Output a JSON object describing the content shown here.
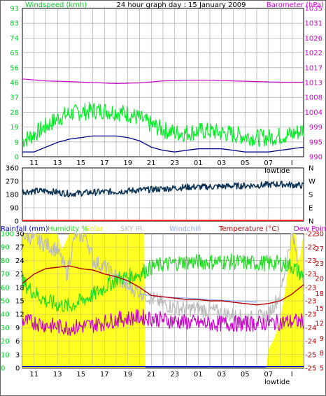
{
  "header": {
    "left_title": "Windspeed (kmh)",
    "center_title": "24 hour graph day : 15 January 2009",
    "right_title": "Barometer (hPa)"
  },
  "colors": {
    "wind_speed": "#00ee22",
    "wind_avg": "#00008b",
    "barometer": "#cc00cc",
    "wind_dir": "#0b3355",
    "temperature": "#b40000",
    "dew_point": "#cc00cc",
    "humidity": "#22dd22",
    "solar": "#ffff22",
    "sky_ir": "#bbbbbb",
    "windchill": "#88aaff",
    "rain": "#0000cc",
    "axis_left_text": "#00cc22",
    "axis_right_text": "#cc00cc",
    "grid": "#9a9a9a"
  },
  "x_axis": {
    "ticks": [
      "11",
      "13",
      "15",
      "17",
      "19",
      "21",
      "23",
      "01",
      "03",
      "05",
      "07",
      "I"
    ],
    "extra_label": "lowtide"
  },
  "chart_data": [
    {
      "type": "line",
      "name": "wind-barometer",
      "x": {
        "start_hour": 10,
        "end_hour": 34
      },
      "left_axis": {
        "label": "Windspeed (kmh)",
        "ticks": [
          "93",
          "83",
          "74",
          "65",
          "56",
          "46",
          "37",
          "28",
          "19",
          "9",
          "0"
        ],
        "ylim": [
          0,
          93
        ]
      },
      "right_axis": {
        "label": "Barometer (hPa)",
        "ticks": [
          "1035",
          "1031",
          "1026",
          "1022",
          "1017",
          "1013",
          "1008",
          "1004",
          "999",
          "995",
          "990"
        ],
        "ylim": [
          990,
          1035
        ]
      },
      "series": [
        {
          "name": "wind gust",
          "axis": "left",
          "style": "noisy",
          "points": [
            [
              10.0,
              10
            ],
            [
              11.0,
              14
            ],
            [
              12.0,
              19
            ],
            [
              13.0,
              24
            ],
            [
              14.0,
              27
            ],
            [
              15.0,
              28
            ],
            [
              16.0,
              29
            ],
            [
              17.0,
              29
            ],
            [
              18.0,
              28
            ],
            [
              19.0,
              27
            ],
            [
              20.0,
              24
            ],
            [
              21.0,
              20
            ],
            [
              22.0,
              17
            ],
            [
              23.0,
              15
            ],
            [
              24.0,
              15
            ],
            [
              25.0,
              16
            ],
            [
              26.0,
              16
            ],
            [
              27.0,
              15
            ],
            [
              28.0,
              14
            ],
            [
              29.0,
              13
            ],
            [
              30.0,
              12
            ],
            [
              31.0,
              12
            ],
            [
              32.0,
              13
            ],
            [
              33.0,
              14
            ],
            [
              34.0,
              17
            ]
          ]
        },
        {
          "name": "wind avg",
          "axis": "left",
          "style": "smooth",
          "points": [
            [
              10.0,
              3
            ],
            [
              11.0,
              3
            ],
            [
              12.0,
              6
            ],
            [
              13.0,
              9
            ],
            [
              14.0,
              11
            ],
            [
              15.0,
              12
            ],
            [
              16.0,
              13
            ],
            [
              17.0,
              13
            ],
            [
              18.0,
              13
            ],
            [
              19.0,
              12
            ],
            [
              20.0,
              10
            ],
            [
              21.0,
              6
            ],
            [
              22.0,
              4
            ],
            [
              23.0,
              3
            ],
            [
              24.0,
              4
            ],
            [
              25.0,
              5
            ],
            [
              26.0,
              5
            ],
            [
              27.0,
              5
            ],
            [
              28.0,
              4
            ],
            [
              29.0,
              3
            ],
            [
              30.0,
              3
            ],
            [
              31.0,
              3
            ],
            [
              32.0,
              4
            ],
            [
              33.0,
              5
            ],
            [
              34.0,
              6
            ]
          ]
        },
        {
          "name": "barometer",
          "axis": "right",
          "style": "smooth",
          "points": [
            [
              10.0,
              1013.6
            ],
            [
              12.0,
              1013.0
            ],
            [
              14.0,
              1012.8
            ],
            [
              16.0,
              1012.5
            ],
            [
              18.0,
              1012.2
            ],
            [
              20.0,
              1012.4
            ],
            [
              22.0,
              1013.0
            ],
            [
              24.0,
              1013.2
            ],
            [
              26.0,
              1013.2
            ],
            [
              28.0,
              1013.0
            ],
            [
              30.0,
              1012.8
            ],
            [
              32.0,
              1012.6
            ],
            [
              34.0,
              1012.6
            ]
          ]
        }
      ]
    },
    {
      "type": "line",
      "name": "wind-direction",
      "x": {
        "start_hour": 10,
        "end_hour": 34
      },
      "left_axis": {
        "ticks": [
          "360",
          "270",
          "180",
          "90",
          "0"
        ],
        "ylim": [
          0,
          360
        ]
      },
      "right_axis": {
        "ticks": [
          "N",
          "W",
          "S",
          "E",
          "N"
        ]
      },
      "series": [
        {
          "name": "wind direction",
          "style": "noisy",
          "points": [
            [
              10.0,
              200
            ],
            [
              12.0,
              205
            ],
            [
              14.0,
              185
            ],
            [
              16.0,
              195
            ],
            [
              18.0,
              200
            ],
            [
              20.0,
              210
            ],
            [
              22.0,
              218
            ],
            [
              24.0,
              230
            ],
            [
              26.0,
              232
            ],
            [
              28.0,
              238
            ],
            [
              30.0,
              242
            ],
            [
              32.0,
              250
            ],
            [
              34.0,
              240
            ]
          ]
        }
      ]
    },
    {
      "type": "line",
      "name": "temperature-humidity-solar",
      "x": {
        "start_hour": 10,
        "end_hour": 34
      },
      "legend": [
        "Rainfall (mm)",
        "Humidity %",
        "Solar",
        "SKY IR",
        "Windchill",
        "Temperature (°C)",
        "Dew Point"
      ],
      "axis_rain": {
        "ticks": [
          "100",
          "90",
          "80",
          "70",
          "60",
          "50",
          "40",
          "30",
          "20",
          "10",
          "0"
        ],
        "ylim": [
          0,
          100
        ]
      },
      "axis_temp_left": {
        "ticks": [
          "30",
          "27",
          "24",
          "21",
          "18",
          "15",
          "12",
          "9",
          "6",
          "3",
          "0"
        ],
        "ylim": [
          0,
          30
        ]
      },
      "axis_ir": {
        "ticks": [
          "-22",
          "-22",
          "-23",
          "-23",
          "-23",
          "-23",
          "-23",
          "-24",
          "-24",
          "-25",
          "-25"
        ]
      },
      "axis_temp_right": {
        "ticks": [
          "30",
          "27",
          "23",
          "20",
          "18",
          "15",
          "12",
          "9",
          "8",
          "5"
        ]
      },
      "series": [
        {
          "name": "Solar",
          "style": "area",
          "points": [
            [
              10.0,
              100
            ],
            [
              13.0,
              100
            ],
            [
              13.4,
              88
            ],
            [
              14.0,
              100
            ],
            [
              16.0,
              100
            ],
            [
              17.0,
              100
            ],
            [
              18.0,
              100
            ],
            [
              19.0,
              100
            ],
            [
              20.0,
              100
            ],
            [
              20.4,
              100
            ],
            [
              20.5,
              0
            ],
            [
              30.8,
              0
            ],
            [
              31.0,
              14
            ],
            [
              31.5,
              22
            ],
            [
              32.0,
              35
            ],
            [
              32.5,
              62
            ],
            [
              33.0,
              100
            ],
            [
              33.3,
              100
            ],
            [
              33.6,
              78
            ],
            [
              34.0,
              100
            ]
          ]
        },
        {
          "name": "Temperature (°C)",
          "style": "smooth",
          "points": [
            [
              10.0,
              63
            ],
            [
              11.0,
              70
            ],
            [
              12.0,
              74
            ],
            [
              13.0,
              75
            ],
            [
              14.0,
              76
            ],
            [
              15.0,
              74
            ],
            [
              16.0,
              73
            ],
            [
              17.0,
              70
            ],
            [
              18.0,
              68
            ],
            [
              19.0,
              65
            ],
            [
              20.0,
              60
            ],
            [
              21.0,
              54
            ],
            [
              22.0,
              53
            ],
            [
              23.0,
              52
            ],
            [
              24.0,
              51
            ],
            [
              25.0,
              51
            ],
            [
              26.0,
              50
            ],
            [
              27.0,
              50
            ],
            [
              28.0,
              49
            ],
            [
              29.0,
              48
            ],
            [
              30.0,
              47
            ],
            [
              31.0,
              48
            ],
            [
              32.0,
              50
            ],
            [
              33.0,
              55
            ],
            [
              34.0,
              62
            ]
          ]
        },
        {
          "name": "Humidity %",
          "style": "noisy",
          "points": [
            [
              10.0,
              64
            ],
            [
              11.0,
              56
            ],
            [
              12.0,
              50
            ],
            [
              13.0,
              47
            ],
            [
              14.0,
              46
            ],
            [
              15.0,
              50
            ],
            [
              16.0,
              54
            ],
            [
              17.0,
              60
            ],
            [
              18.0,
              66
            ],
            [
              19.0,
              68
            ],
            [
              20.0,
              70
            ],
            [
              21.0,
              75
            ],
            [
              22.0,
              77
            ],
            [
              23.0,
              78
            ],
            [
              24.0,
              79
            ],
            [
              26.0,
              79
            ],
            [
              28.0,
              79
            ],
            [
              30.0,
              78
            ],
            [
              32.0,
              78
            ],
            [
              33.0,
              76
            ],
            [
              34.0,
              68
            ]
          ]
        },
        {
          "name": "SKY IR",
          "style": "noisy",
          "points": [
            [
              10.0,
              100
            ],
            [
              11.0,
              96
            ],
            [
              12.0,
              92
            ],
            [
              13.0,
              88
            ],
            [
              13.8,
              70
            ],
            [
              14.5,
              100
            ],
            [
              15.5,
              97
            ],
            [
              16.0,
              80
            ],
            [
              17.0,
              75
            ],
            [
              18.0,
              68
            ],
            [
              19.0,
              60
            ],
            [
              20.0,
              57
            ],
            [
              21.0,
              52
            ],
            [
              22.0,
              48
            ],
            [
              23.0,
              45
            ],
            [
              24.0,
              44
            ],
            [
              25.0,
              44
            ],
            [
              26.0,
              43
            ],
            [
              27.0,
              41
            ],
            [
              28.0,
              39
            ],
            [
              29.0,
              37
            ],
            [
              30.0,
              37
            ],
            [
              31.0,
              40
            ],
            [
              32.0,
              55
            ],
            [
              33.0,
              100
            ],
            [
              34.0,
              60
            ]
          ]
        },
        {
          "name": "Windchill",
          "style": "smooth",
          "points": [
            [
              20.0,
              55
            ],
            [
              22.0,
              53
            ],
            [
              24.0,
              52
            ],
            [
              26.0,
              51
            ],
            [
              28.0,
              50
            ],
            [
              30.0,
              49
            ]
          ]
        },
        {
          "name": "Dew Point",
          "style": "noisy",
          "points": [
            [
              10.0,
              35
            ],
            [
              11.0,
              34
            ],
            [
              12.0,
              32
            ],
            [
              13.0,
              31
            ],
            [
              14.0,
              30
            ],
            [
              15.0,
              31
            ],
            [
              16.0,
              32
            ],
            [
              17.0,
              34
            ],
            [
              18.0,
              36
            ],
            [
              19.0,
              37
            ],
            [
              20.0,
              38
            ],
            [
              21.0,
              37
            ],
            [
              22.0,
              36
            ],
            [
              24.0,
              34
            ],
            [
              26.0,
              33
            ],
            [
              28.0,
              33
            ],
            [
              30.0,
              33
            ],
            [
              32.0,
              34
            ],
            [
              34.0,
              35
            ]
          ]
        },
        {
          "name": "Rainfall (mm)",
          "style": "smooth",
          "points": [
            [
              10.0,
              0
            ],
            [
              34.0,
              0
            ]
          ]
        }
      ]
    }
  ]
}
